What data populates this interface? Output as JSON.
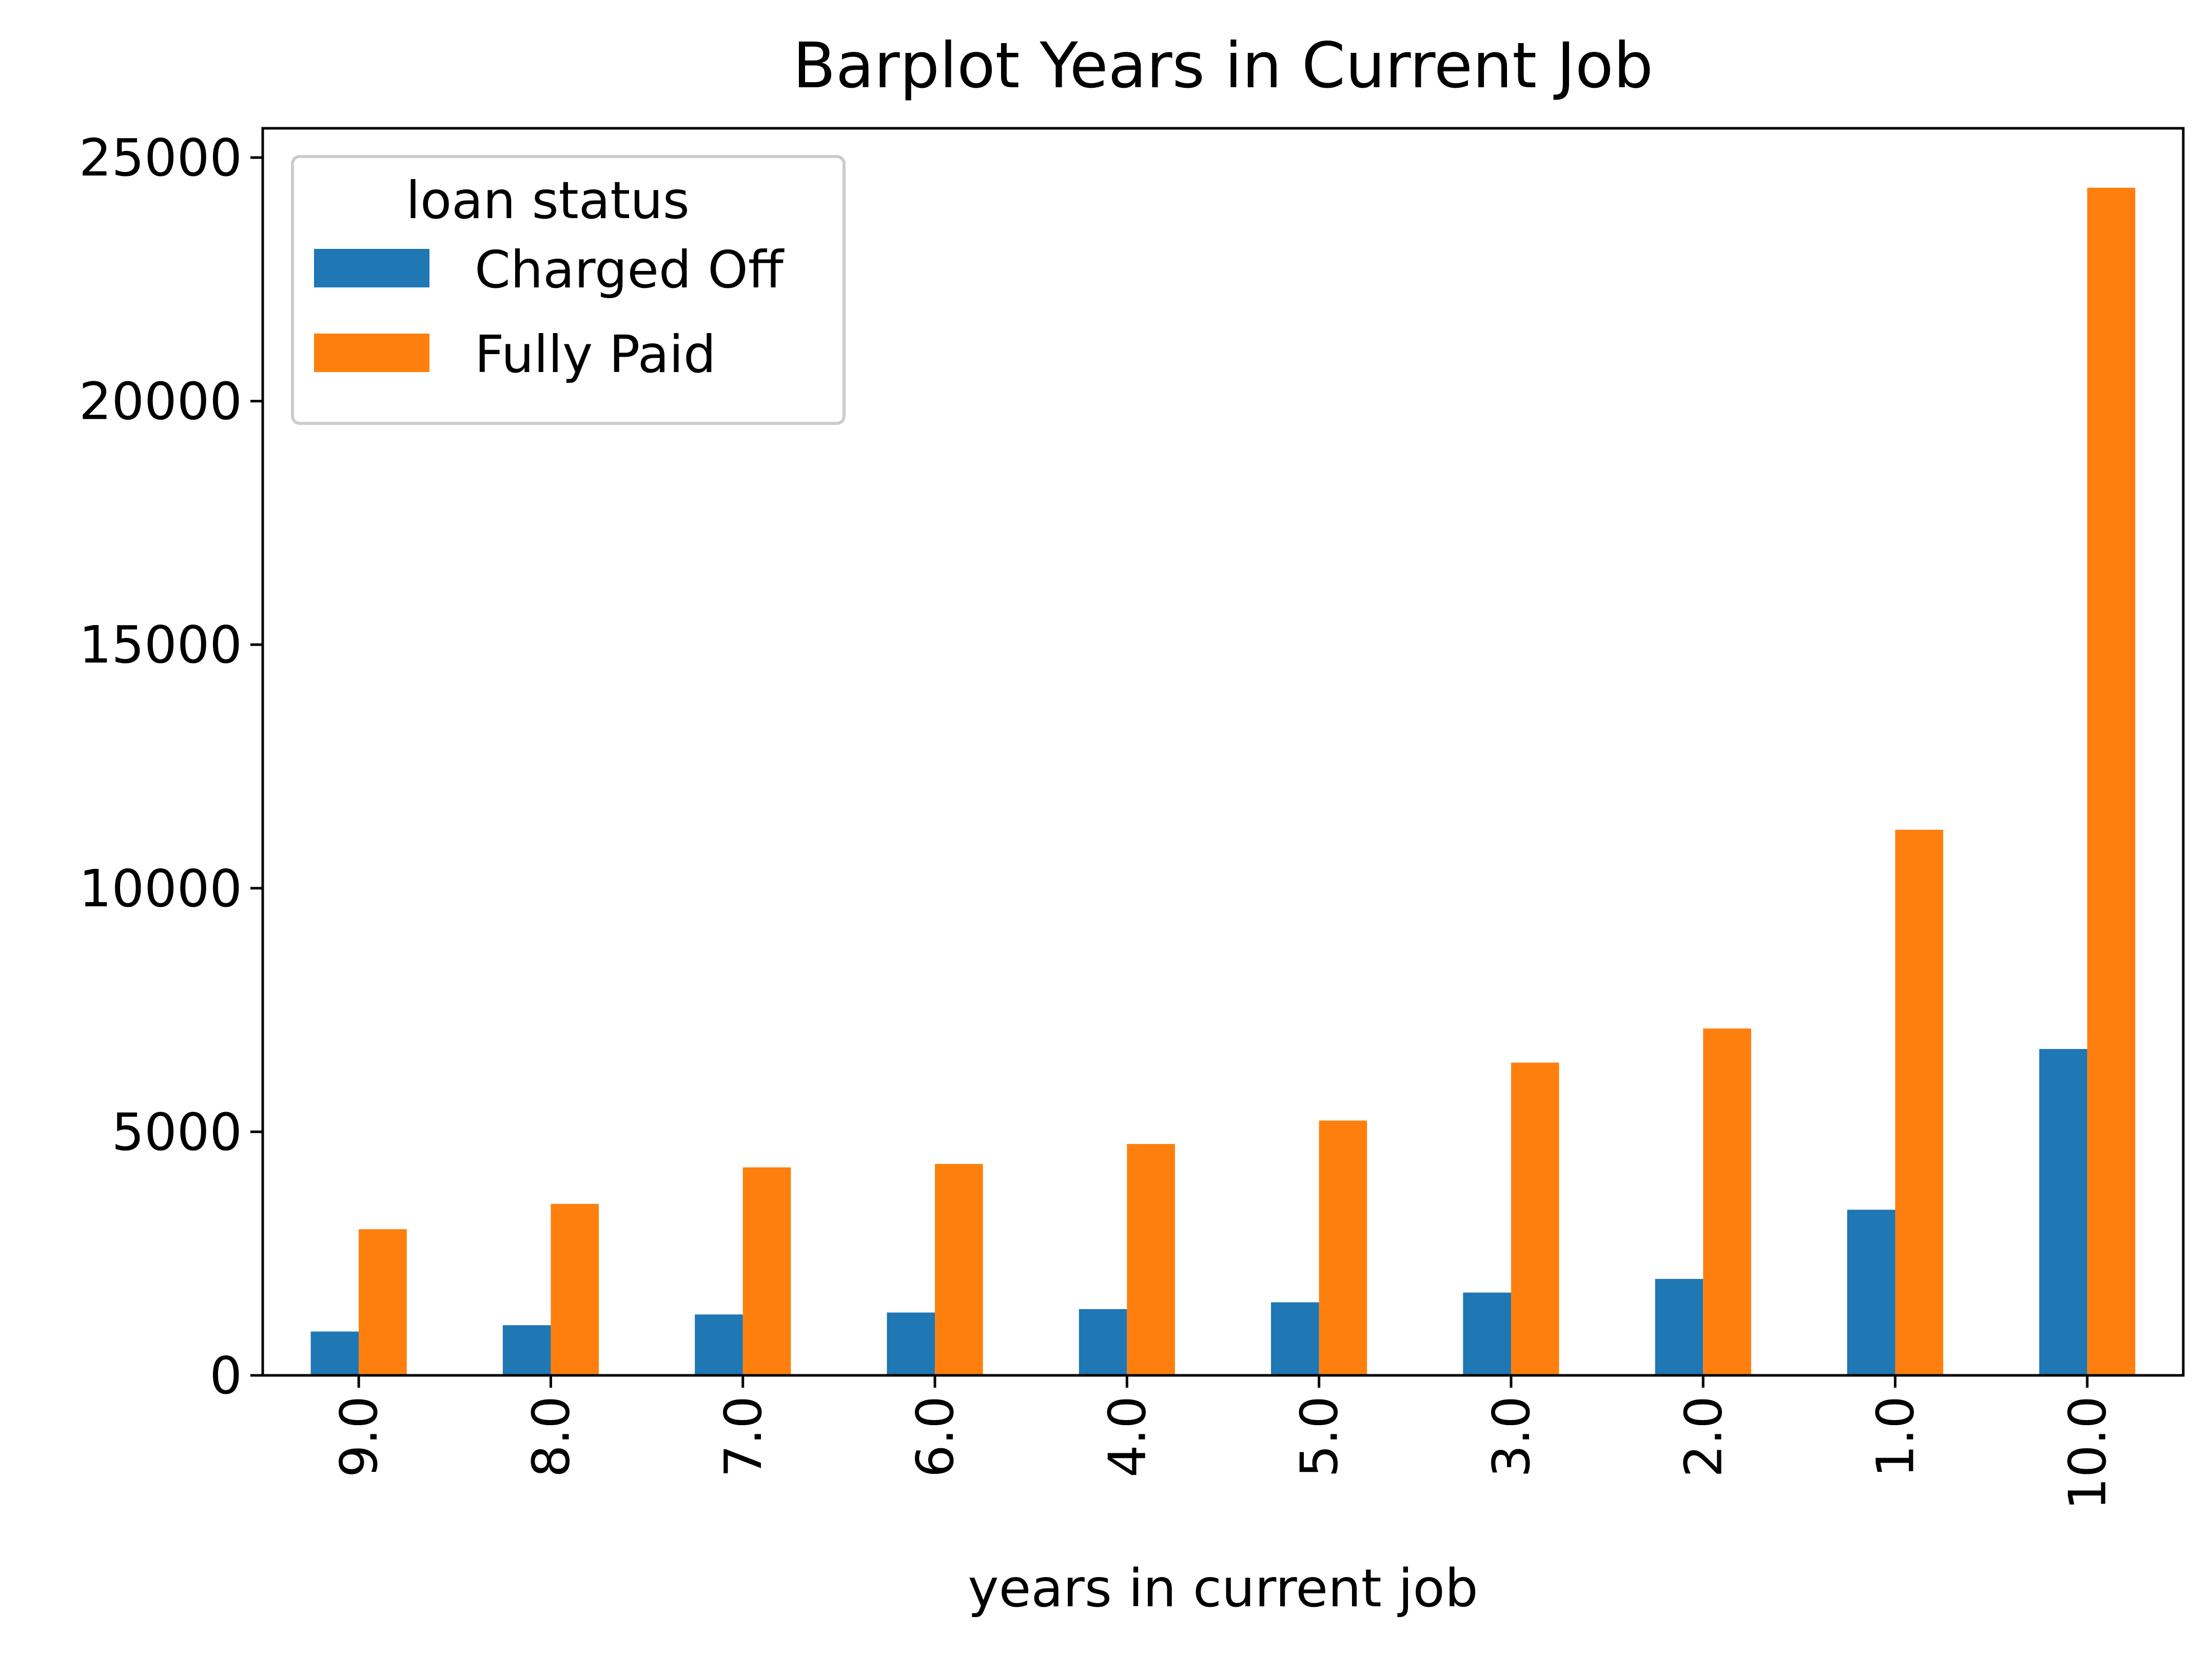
{
  "chart_data": {
    "type": "bar",
    "title": "Barplot Years in Current Job",
    "xlabel": "years in current job",
    "ylabel": "",
    "categories": [
      "9.0",
      "8.0",
      "7.0",
      "6.0",
      "4.0",
      "5.0",
      "3.0",
      "2.0",
      "1.0",
      "10.0"
    ],
    "series": [
      {
        "name": "Charged Off",
        "color": "#1f77b4",
        "values": [
          900,
          1030,
          1250,
          1290,
          1360,
          1500,
          1700,
          1980,
          3400,
          6700
        ]
      },
      {
        "name": "Fully Paid",
        "color": "#ff7f0e",
        "values": [
          3000,
          3520,
          4270,
          4340,
          4750,
          5230,
          6420,
          7120,
          11200,
          24380
        ]
      }
    ],
    "ylim": [
      0,
      25600
    ],
    "yticks": [
      0,
      5000,
      10000,
      15000,
      20000,
      25000
    ],
    "legend": {
      "title": "loan status",
      "placement": "top-left"
    },
    "grid": false
  }
}
